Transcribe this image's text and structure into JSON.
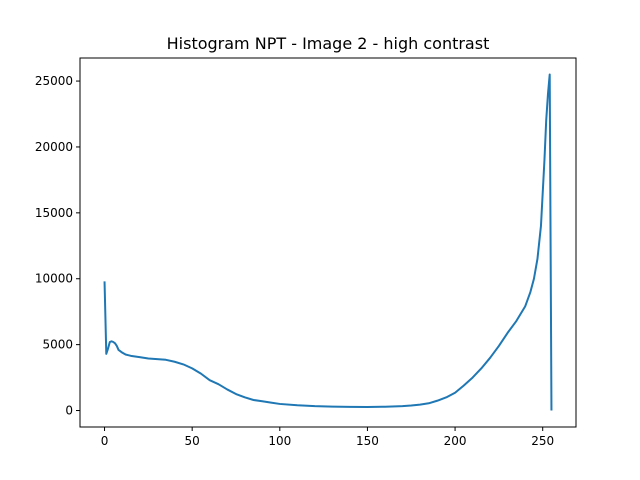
{
  "chart_data": {
    "type": "line",
    "title": "Histogram NPT - Image 2 - high contrast",
    "xlabel": "",
    "ylabel": "",
    "xlim": [
      -14,
      269
    ],
    "ylim": [
      -1250,
      26750
    ],
    "xticks": [
      0,
      50,
      100,
      150,
      200,
      250
    ],
    "yticks": [
      0,
      5000,
      10000,
      15000,
      20000,
      25000
    ],
    "grid": false,
    "line_color": "#1f77b4",
    "series": [
      {
        "x": [
          0,
          1,
          2,
          3,
          4,
          5,
          6,
          7,
          8,
          9,
          10,
          12,
          15,
          20,
          25,
          30,
          35,
          40,
          45,
          50,
          55,
          60,
          65,
          70,
          75,
          80,
          85,
          90,
          95,
          100,
          110,
          120,
          130,
          140,
          150,
          160,
          170,
          175,
          180,
          185,
          190,
          195,
          200,
          205,
          210,
          215,
          220,
          225,
          230,
          235,
          240,
          243,
          245,
          247,
          249,
          250,
          251,
          252,
          253,
          254,
          255
        ],
        "y": [
          9800,
          4300,
          4700,
          5200,
          5250,
          5200,
          5100,
          4900,
          4600,
          4500,
          4400,
          4250,
          4150,
          4050,
          3950,
          3900,
          3850,
          3700,
          3500,
          3200,
          2800,
          2300,
          2000,
          1600,
          1250,
          1000,
          800,
          700,
          600,
          500,
          400,
          330,
          300,
          280,
          270,
          290,
          330,
          380,
          450,
          550,
          750,
          1000,
          1350,
          1900,
          2500,
          3200,
          4000,
          4900,
          5900,
          6800,
          7900,
          9000,
          10000,
          11500,
          14000,
          16500,
          19000,
          22000,
          24000,
          25500,
          0
        ]
      }
    ]
  }
}
